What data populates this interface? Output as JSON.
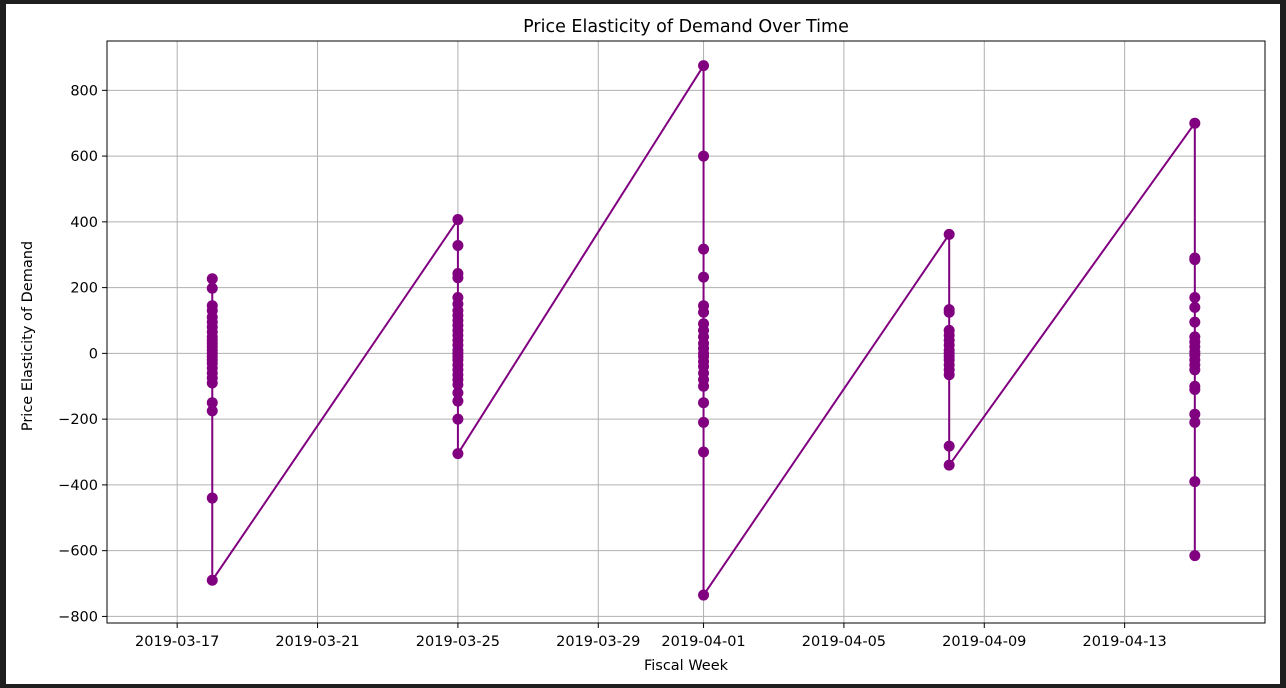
{
  "chart_data": {
    "type": "line",
    "title": "Price Elasticity of Demand Over Time",
    "xlabel": "Fiscal Week",
    "ylabel": "Price Elasticity of Demand",
    "grid": true,
    "legend": "none",
    "colors": {
      "series": "#800080",
      "axes": "#000000",
      "grid": "#b0b0b0",
      "background": "#ffffff"
    },
    "xlim": [
      "2019-03-15",
      "2019-04-17"
    ],
    "ylim": [
      -820,
      950
    ],
    "x_ticks": [
      "2019-03-17",
      "2019-03-21",
      "2019-03-25",
      "2019-03-29",
      "2019-04-01",
      "2019-04-05",
      "2019-04-09",
      "2019-04-13"
    ],
    "y_ticks": [
      -800,
      -600,
      -400,
      -200,
      0,
      200,
      400,
      600,
      800
    ],
    "y_tick_labels": [
      "−800",
      "−600",
      "−400",
      "−200",
      "0",
      "200",
      "400",
      "600",
      "800"
    ],
    "series": [
      {
        "markers": "circle",
        "points": [
          {
            "x": "2019-03-18",
            "values": [
              227,
              198,
              145,
              130,
              110,
              95,
              80,
              65,
              50,
              40,
              30,
              20,
              10,
              0,
              -10,
              -20,
              -30,
              -45,
              -60,
              -75,
              -90,
              -150,
              -175,
              -440,
              -690
            ]
          },
          {
            "x": "2019-03-25",
            "values": [
              407,
              328,
              243,
              230,
              170,
              150,
              130,
              115,
              100,
              85,
              70,
              55,
              40,
              25,
              10,
              0,
              -10,
              -20,
              -35,
              -50,
              -65,
              -80,
              -95,
              -120,
              -145,
              -200,
              -305
            ]
          },
          {
            "x": "2019-04-01",
            "values": [
              875,
              600,
              317,
              232,
              145,
              125,
              90,
              70,
              50,
              30,
              15,
              0,
              -10,
              -25,
              -40,
              -60,
              -80,
              -100,
              -150,
              -210,
              -300,
              -735
            ]
          },
          {
            "x": "2019-04-08",
            "values": [
              362,
              133,
              125,
              70,
              55,
              40,
              25,
              10,
              0,
              -10,
              -20,
              -35,
              -50,
              -65,
              -282,
              -340
            ]
          },
          {
            "x": "2019-04-15",
            "values": [
              700,
              290,
              285,
              170,
              140,
              95,
              50,
              35,
              20,
              5,
              -5,
              -20,
              -35,
              -50,
              -100,
              -110,
              -185,
              -210,
              -390,
              -615
            ]
          }
        ]
      }
    ]
  }
}
